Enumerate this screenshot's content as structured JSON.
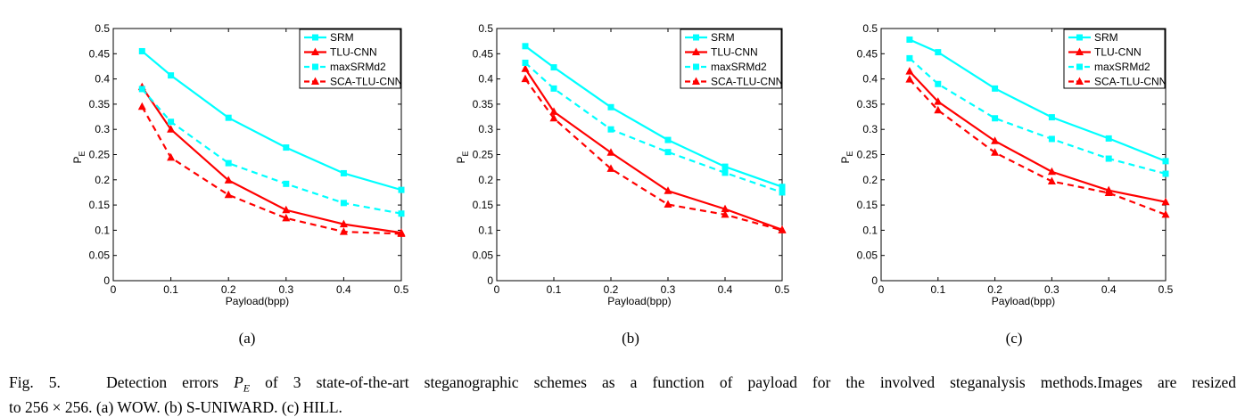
{
  "chart_data": [
    {
      "type": "line",
      "subfigure_label": "(a)",
      "xlabel": "Payload(bpp)",
      "ylabel": "P",
      "ylabel_subscript": "E",
      "xlim": [
        0,
        0.5
      ],
      "ylim": [
        0,
        0.5
      ],
      "xticks": [
        0,
        0.1,
        0.2,
        0.3,
        0.4,
        0.5
      ],
      "yticks": [
        0,
        0.05,
        0.1,
        0.15,
        0.2,
        0.25,
        0.3,
        0.35,
        0.4,
        0.45,
        0.5
      ],
      "legend_position": "top-right",
      "x": [
        0.05,
        0.1,
        0.2,
        0.3,
        0.4,
        0.5
      ],
      "series": [
        {
          "name": "SRM",
          "color": "#00FFFF",
          "dash": "solid",
          "marker": "square",
          "values": [
            0.455,
            0.407,
            0.323,
            0.264,
            0.213,
            0.18
          ]
        },
        {
          "name": "TLU-CNN",
          "color": "#FF0000",
          "dash": "solid",
          "marker": "triangle",
          "values": [
            0.384,
            0.3,
            0.199,
            0.14,
            0.112,
            0.095
          ]
        },
        {
          "name": "maxSRMd2",
          "color": "#00FFFF",
          "dash": "dashed",
          "marker": "square",
          "values": [
            0.38,
            0.315,
            0.233,
            0.192,
            0.154,
            0.133
          ]
        },
        {
          "name": "SCA-TLU-CNN",
          "color": "#FF0000",
          "dash": "dashed",
          "marker": "triangle",
          "values": [
            0.345,
            0.244,
            0.17,
            0.124,
            0.097,
            0.093
          ]
        }
      ]
    },
    {
      "type": "line",
      "subfigure_label": "(b)",
      "xlabel": "Payload(bpp)",
      "ylabel": "P",
      "ylabel_subscript": "E",
      "xlim": [
        0,
        0.5
      ],
      "ylim": [
        0,
        0.5
      ],
      "xticks": [
        0,
        0.1,
        0.2,
        0.3,
        0.4,
        0.5
      ],
      "yticks": [
        0,
        0.05,
        0.1,
        0.15,
        0.2,
        0.25,
        0.3,
        0.35,
        0.4,
        0.45,
        0.5
      ],
      "legend_position": "top-right",
      "x": [
        0.05,
        0.1,
        0.2,
        0.3,
        0.4,
        0.5
      ],
      "series": [
        {
          "name": "SRM",
          "color": "#00FFFF",
          "dash": "solid",
          "marker": "square",
          "values": [
            0.465,
            0.423,
            0.344,
            0.279,
            0.226,
            0.186
          ]
        },
        {
          "name": "TLU-CNN",
          "color": "#FF0000",
          "dash": "solid",
          "marker": "triangle",
          "values": [
            0.42,
            0.335,
            0.254,
            0.178,
            0.142,
            0.101
          ]
        },
        {
          "name": "maxSRMd2",
          "color": "#00FFFF",
          "dash": "dashed",
          "marker": "square",
          "values": [
            0.432,
            0.381,
            0.3,
            0.255,
            0.214,
            0.175
          ]
        },
        {
          "name": "SCA-TLU-CNN",
          "color": "#FF0000",
          "dash": "dashed",
          "marker": "triangle",
          "values": [
            0.4,
            0.322,
            0.222,
            0.151,
            0.131,
            0.1
          ]
        }
      ]
    },
    {
      "type": "line",
      "subfigure_label": "(c)",
      "xlabel": "Payload(bpp)",
      "ylabel": "P",
      "ylabel_subscript": "E",
      "xlim": [
        0,
        0.5
      ],
      "ylim": [
        0,
        0.5
      ],
      "xticks": [
        0,
        0.1,
        0.2,
        0.3,
        0.4,
        0.5
      ],
      "yticks": [
        0,
        0.05,
        0.1,
        0.15,
        0.2,
        0.25,
        0.3,
        0.35,
        0.4,
        0.45,
        0.5
      ],
      "legend_position": "top-right",
      "x": [
        0.05,
        0.1,
        0.2,
        0.3,
        0.4,
        0.5
      ],
      "series": [
        {
          "name": "SRM",
          "color": "#00FFFF",
          "dash": "solid",
          "marker": "square",
          "values": [
            0.478,
            0.453,
            0.381,
            0.324,
            0.282,
            0.237
          ]
        },
        {
          "name": "TLU-CNN",
          "color": "#FF0000",
          "dash": "solid",
          "marker": "triangle",
          "values": [
            0.415,
            0.355,
            0.277,
            0.216,
            0.179,
            0.156
          ]
        },
        {
          "name": "maxSRMd2",
          "color": "#00FFFF",
          "dash": "dashed",
          "marker": "square",
          "values": [
            0.441,
            0.39,
            0.322,
            0.281,
            0.242,
            0.212
          ]
        },
        {
          "name": "SCA-TLU-CNN",
          "color": "#FF0000",
          "dash": "dashed",
          "marker": "triangle",
          "values": [
            0.399,
            0.338,
            0.254,
            0.197,
            0.174,
            0.131
          ]
        }
      ]
    }
  ],
  "caption": {
    "label": "Fig. 5.",
    "pre_symbol": "Detection errors",
    "symbol": "P",
    "symbol_sub": "E",
    "line1_rest": "of 3 state-of-the-art steganographic schemes as a function of payload for the involved steganalysis methods.Images are resized",
    "line2": "to 256 × 256. (a) WOW. (b) S-UNIWARD. (c) HILL."
  }
}
